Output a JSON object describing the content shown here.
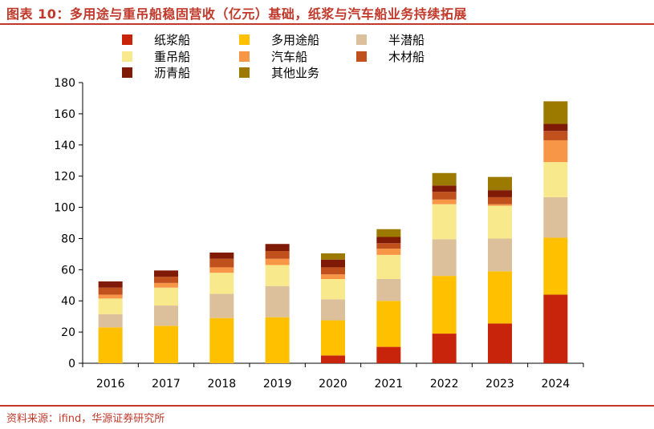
{
  "header": {
    "title": "图表 10：多用途与重吊船稳固营收（亿元）基础，纸浆与汽车船业务持续拓展"
  },
  "footer": {
    "source": "资料来源：ifind，华源证券研究所"
  },
  "chart_data": {
    "type": "bar",
    "stacked": true,
    "categories": [
      "2016",
      "2017",
      "2018",
      "2019",
      "2020",
      "2021",
      "2022",
      "2023",
      "2024"
    ],
    "ylim": [
      0,
      180
    ],
    "yticks": [
      0,
      20,
      40,
      60,
      80,
      100,
      120,
      140,
      160,
      180
    ],
    "grid": false,
    "legend_position": "top",
    "series": [
      {
        "name": "纸浆船",
        "color": "#c8240c",
        "values": [
          0,
          0,
          0,
          0,
          5,
          10.5,
          19,
          25.5,
          44
        ]
      },
      {
        "name": "多用途船",
        "color": "#ffc000",
        "values": [
          23,
          24,
          29,
          29.5,
          22.5,
          29.5,
          37,
          33.5,
          36.5
        ]
      },
      {
        "name": "半潜船",
        "color": "#dcc09c",
        "values": [
          8.5,
          13,
          15.5,
          20,
          13.5,
          14,
          23.5,
          21,
          26
        ]
      },
      {
        "name": "重吊船",
        "color": "#f8ea8c",
        "values": [
          10,
          11.5,
          13.5,
          13.5,
          13,
          15.5,
          22.5,
          21,
          22.5
        ]
      },
      {
        "name": "汽车船",
        "color": "#f79646",
        "values": [
          2.5,
          3,
          3.5,
          4,
          3,
          4,
          3,
          1,
          14
        ]
      },
      {
        "name": "木材船",
        "color": "#c0501c",
        "values": [
          4.5,
          4,
          5.5,
          5,
          4.5,
          3.5,
          5,
          4.5,
          6
        ]
      },
      {
        "name": "沥青船",
        "color": "#7f1a06",
        "values": [
          4,
          4,
          4,
          4.5,
          5,
          4,
          4,
          4.5,
          4.5
        ]
      },
      {
        "name": "其他业务",
        "color": "#9c7a00",
        "values": [
          0,
          0,
          0,
          0,
          4,
          5,
          8,
          8.5,
          14.5
        ]
      }
    ]
  }
}
